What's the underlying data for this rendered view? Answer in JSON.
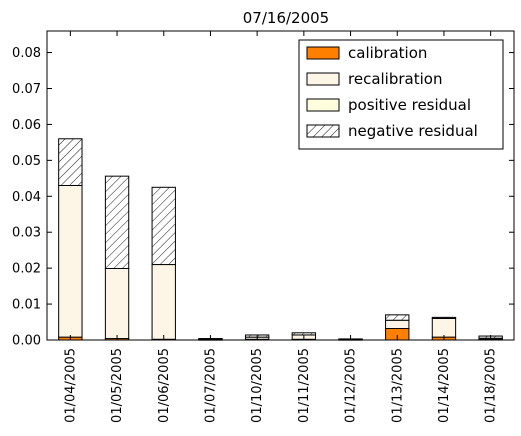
{
  "chart_data": {
    "type": "bar",
    "stacked": true,
    "title": "07/16/2005",
    "xlabel": "",
    "ylabel": "",
    "categories": [
      "01/04/2005",
      "01/05/2005",
      "01/06/2005",
      "01/07/2005",
      "01/10/2005",
      "01/11/2005",
      "01/12/2005",
      "01/13/2005",
      "01/14/2005",
      "01/18/2005"
    ],
    "ylim": [
      0,
      0.086
    ],
    "yticks": [
      "0.00",
      "0.01",
      "0.02",
      "0.03",
      "0.04",
      "0.05",
      "0.06",
      "0.07",
      "0.08"
    ],
    "grid": false,
    "legend_position": "top-right",
    "series": [
      {
        "name": "calibration",
        "color": "#ff7f00",
        "pattern": "solid",
        "values": [
          0.0008,
          0.0004,
          0.0002,
          0.0001,
          0.0002,
          0.0002,
          0.0001,
          0.0032,
          0.0008,
          0.0002
        ]
      },
      {
        "name": "recalibration",
        "color": "#fdf5e6",
        "pattern": "solid",
        "values": [
          0.0422,
          0.0195,
          0.0208,
          0.0002,
          0.0006,
          0.0012,
          0.0001,
          0.0023,
          0.0052,
          0.0003
        ]
      },
      {
        "name": "positive residual",
        "color": "#ffffe0",
        "pattern": "solid",
        "values": [
          0,
          0,
          0,
          0,
          0,
          0,
          0,
          0,
          0,
          0
        ]
      },
      {
        "name": "negative residual",
        "color": "#ffffff",
        "pattern": "hatch",
        "values": [
          0.013,
          0.0257,
          0.0215,
          0.0001,
          0.0006,
          0.0006,
          0.0001,
          0.0015,
          0.0003,
          0.0006
        ]
      }
    ]
  }
}
